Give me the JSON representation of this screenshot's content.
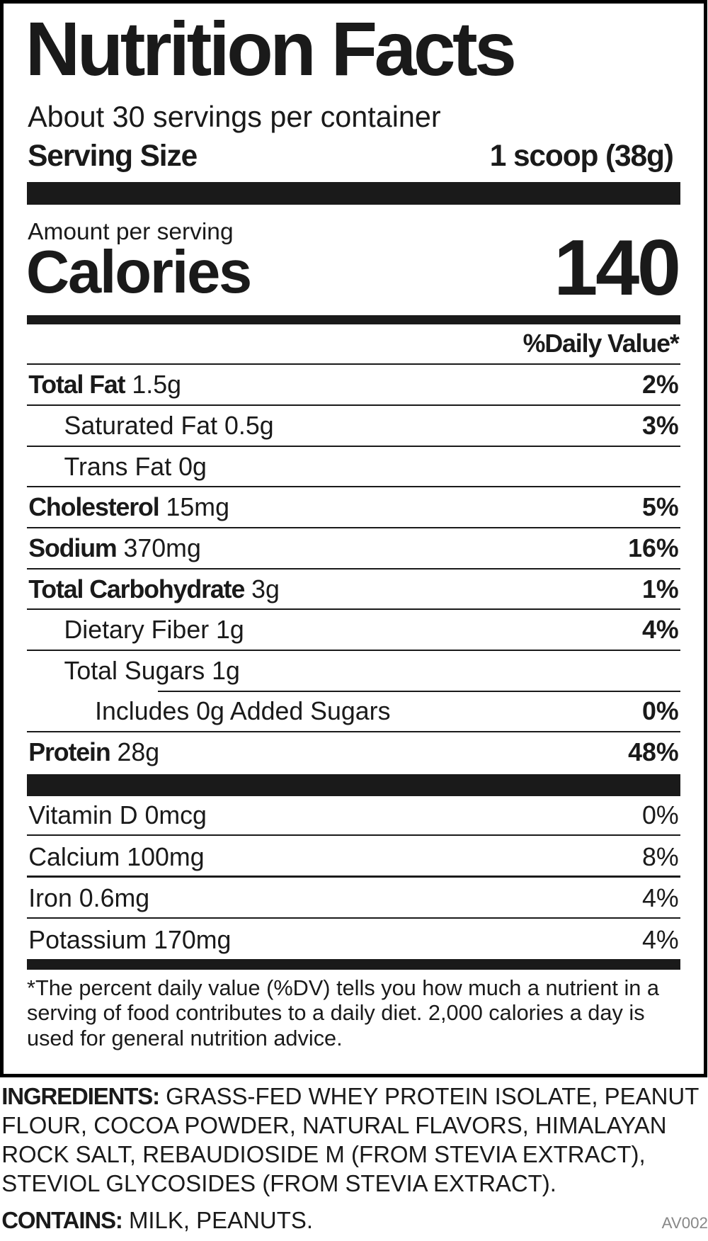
{
  "title": "Nutrition Facts",
  "servings_per_container": "About 30 servings per container",
  "serving_size": {
    "label": "Serving Size",
    "value": "1 scoop (38g)"
  },
  "amount_per_serving": "Amount per serving",
  "calories": {
    "label": "Calories",
    "value": "140"
  },
  "daily_value_header": "%Daily Value*",
  "nutrients": [
    {
      "name": "Total Fat",
      "amount": "1.5g",
      "dv": "2%",
      "bold": true,
      "indent": 0
    },
    {
      "name": "Saturated Fat",
      "amount": "0.5g",
      "dv": "3%",
      "bold": false,
      "indent": 1
    },
    {
      "name": "Trans Fat",
      "amount": "0g",
      "dv": "",
      "bold": false,
      "indent": 1
    },
    {
      "name": "Cholesterol",
      "amount": "15mg",
      "dv": "5%",
      "bold": true,
      "indent": 0
    },
    {
      "name": "Sodium",
      "amount": "370mg",
      "dv": "16%",
      "bold": true,
      "indent": 0
    },
    {
      "name": "Total Carbohydrate",
      "amount": "3g",
      "dv": "1%",
      "bold": true,
      "indent": 0
    },
    {
      "name": "Dietary Fiber",
      "amount": "1g",
      "dv": "4%",
      "bold": false,
      "indent": 1
    },
    {
      "name": "Total Sugars",
      "amount": "1g",
      "dv": "",
      "bold": false,
      "indent": 1
    },
    {
      "name": "Includes 0g Added Sugars",
      "amount": "",
      "dv": "0%",
      "bold": false,
      "indent": 2
    },
    {
      "name": "Protein",
      "amount": "28g",
      "dv": "48%",
      "bold": true,
      "indent": 0
    }
  ],
  "vitamins": [
    {
      "name": "Vitamin D",
      "amount": "0mcg",
      "dv": "0%"
    },
    {
      "name": "Calcium",
      "amount": "100mg",
      "dv": "8%"
    },
    {
      "name": "Iron",
      "amount": "0.6mg",
      "dv": "4%"
    },
    {
      "name": "Potassium",
      "amount": "170mg",
      "dv": "4%"
    }
  ],
  "footnote": "*The percent daily value (%DV) tells you how much a nutrient in a serving of food contributes to a daily diet. 2,000 calories a day is used for general nutrition advice.",
  "ingredients": {
    "label": "INGREDIENTS:",
    "text": "GRASS-FED WHEY PROTEIN ISOLATE, PEANUT FLOUR, COCOA POWDER, NATURAL FLAVORS, HIMALAYAN ROCK SALT, REBAUDIOSIDE M (FROM STEVIA EXTRACT), STEVIOL GLYCOSIDES (FROM STEVIA EXTRACT)."
  },
  "contains": {
    "label": "CONTAINS:",
    "text": "MILK, PEANUTS."
  },
  "code": "AV002"
}
